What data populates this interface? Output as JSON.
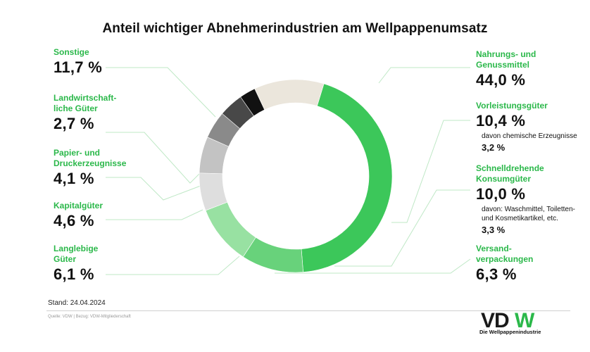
{
  "title": "Anteil wichtiger Abnehmerindustrien am Wellpappenumsatz",
  "chart_data": {
    "type": "pie",
    "variant": "donut",
    "title": "Anteil wichtiger Abnehmerindustrien am Wellpappenumsatz",
    "slices": [
      {
        "name": "Nahrungs- und\nGenussmittel",
        "value": 44.0,
        "label": "44,0 %",
        "color": "#3cc75a"
      },
      {
        "name": "Vorleistungsgüter",
        "value": 10.4,
        "label": "10,4 %",
        "color": "#68d27b",
        "note": "davon chemische Erzeugnisse",
        "note_value": "3,2 %"
      },
      {
        "name": "Schnelldrehende\nKonsumgüter",
        "value": 10.0,
        "label": "10,0 %",
        "color": "#98e1a2",
        "note": "davon: Waschmittel, Toiletten-\nund Kosmetikartikel, etc.",
        "note_value": "3,3 %"
      },
      {
        "name": "Versand-\nverpackungen",
        "value": 6.3,
        "label": "6,3 %",
        "color": "#dedede"
      },
      {
        "name": "Langlebige\nGüter",
        "value": 6.1,
        "label": "6,1 %",
        "color": "#c3c3c3"
      },
      {
        "name": "Kapitalgüter",
        "value": 4.6,
        "label": "4,6 %",
        "color": "#8a8a8a"
      },
      {
        "name": "Papier- und\nDruckerzeugnisse",
        "value": 4.1,
        "label": "4,1 %",
        "color": "#484848"
      },
      {
        "name": "Landwirtschaft-\nliche Güter",
        "value": 2.7,
        "label": "2,7 %",
        "color": "#111111"
      },
      {
        "name": "Sonstige",
        "value": 11.7,
        "label": "11,7 %",
        "color": "#ebe6dc"
      }
    ]
  },
  "footer": {
    "stand": "Stand: 24.04.2024",
    "source": "Quelle: VDW | Bezug: VDW-Mitgliederschaft"
  },
  "logo": {
    "text": "VDW",
    "tagline": "Die Wellpappenindustrie",
    "colors": {
      "dark": "#1a1a1a",
      "green": "#2bb84a"
    }
  }
}
